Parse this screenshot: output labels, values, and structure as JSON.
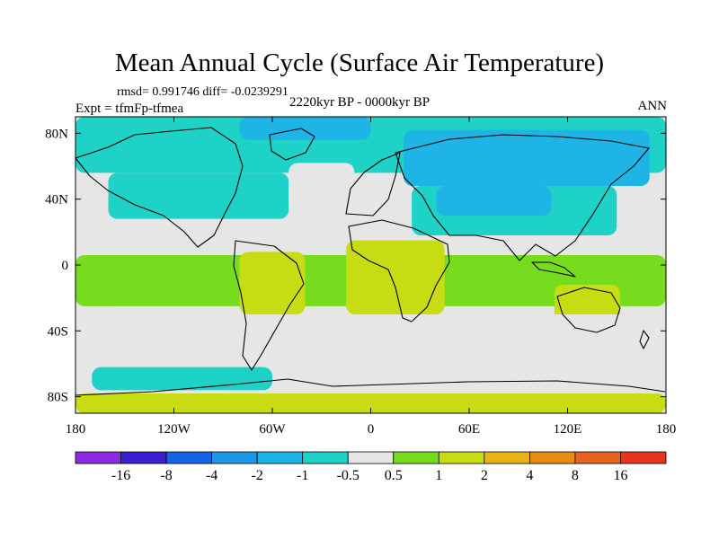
{
  "title": "Mean Annual Cycle (Surface Air Temperature)",
  "stats": "rmsd= 0.991746 diff= -0.0239291",
  "subtitle": "2220kyr BP - 0000kyr BP",
  "expt": "Expt = tfmFp-tfmea",
  "season": "ANN",
  "chart_data": {
    "type": "heatmap",
    "map_projection": "cylindrical-equidistant",
    "title": "Mean Annual Cycle (Surface Air Temperature)",
    "lon_range": [
      -180,
      180
    ],
    "lat_range": [
      -90,
      90
    ],
    "x_ticks": [
      {
        "value": -180,
        "label": "180"
      },
      {
        "value": -120,
        "label": "120W"
      },
      {
        "value": -60,
        "label": "60W"
      },
      {
        "value": 0,
        "label": "0"
      },
      {
        "value": 60,
        "label": "60E"
      },
      {
        "value": 120,
        "label": "120E"
      },
      {
        "value": 180,
        "label": "180"
      }
    ],
    "y_ticks": [
      {
        "value": 80,
        "label": "80N"
      },
      {
        "value": 40,
        "label": "40N"
      },
      {
        "value": 0,
        "label": "0"
      },
      {
        "value": -40,
        "label": "40S"
      },
      {
        "value": -80,
        "label": "80S"
      }
    ],
    "colorbar": {
      "colors": [
        "#8a2be2",
        "#3a1fd0",
        "#1464e6",
        "#1e96e6",
        "#1eb4e6",
        "#1ed2c8",
        "#e6e6e6",
        "#78dc1e",
        "#c8dc14",
        "#e6b414",
        "#e68c14",
        "#e6641e",
        "#e6321e"
      ],
      "labels": [
        "-16",
        "-8",
        "-4",
        "-2",
        "-1",
        "-0.5",
        "0.5",
        "1",
        "2",
        "4",
        "8",
        "16"
      ]
    },
    "regions": [
      {
        "name": "north-polar-cyan",
        "bin": "-1",
        "color": "#1ed2c8",
        "lon": [
          -180,
          180
        ],
        "lat": [
          56,
          90
        ]
      },
      {
        "name": "eurasia-blue",
        "bin": "-2",
        "color": "#1eb4e6",
        "lon": [
          20,
          170
        ],
        "lat": [
          48,
          82
        ]
      },
      {
        "name": "arctic-blue",
        "bin": "-2",
        "color": "#1eb4e6",
        "lon": [
          -80,
          0
        ],
        "lat": [
          76,
          90
        ]
      },
      {
        "name": "north-america-cyan",
        "bin": "-1",
        "color": "#1ed2c8",
        "lon": [
          -160,
          -50
        ],
        "lat": [
          28,
          56
        ]
      },
      {
        "name": "asia-cyan",
        "bin": "-1",
        "color": "#1ed2c8",
        "lon": [
          25,
          150
        ],
        "lat": [
          18,
          48
        ]
      },
      {
        "name": "central-asia-blue",
        "bin": "-2",
        "color": "#1eb4e6",
        "lon": [
          40,
          110
        ],
        "lat": [
          30,
          48
        ]
      },
      {
        "name": "north-atlantic-gray",
        "bin": "-0.5..0.5",
        "color": "#e6e6e6",
        "lon": [
          -50,
          -10
        ],
        "lat": [
          30,
          62
        ]
      },
      {
        "name": "tropics-green",
        "bin": "1",
        "color": "#78dc1e",
        "lon": [
          -180,
          180
        ],
        "lat": [
          -25,
          6
        ]
      },
      {
        "name": "south-america-yellow",
        "bin": "2",
        "color": "#c8dc14",
        "lon": [
          -80,
          -40
        ],
        "lat": [
          -30,
          8
        ]
      },
      {
        "name": "africa-yellow",
        "bin": "2",
        "color": "#c8dc14",
        "lon": [
          -15,
          45
        ],
        "lat": [
          -30,
          15
        ]
      },
      {
        "name": "australia-yellow",
        "bin": "2",
        "color": "#c8dc14",
        "lon": [
          112,
          152
        ],
        "lat": [
          -38,
          -12
        ]
      },
      {
        "name": "southern-ocean-gray",
        "bin": "-0.5..0.5",
        "color": "#e6e6e6",
        "lon": [
          -180,
          180
        ],
        "lat": [
          -60,
          -30
        ]
      },
      {
        "name": "southern-ocean-blue",
        "bin": "-1",
        "color": "#1ed2c8",
        "lon": [
          -170,
          -60
        ],
        "lat": [
          -76,
          -62
        ]
      },
      {
        "name": "antarctica-yellow",
        "bin": "2",
        "color": "#c8dc14",
        "lon": [
          -180,
          180
        ],
        "lat": [
          -90,
          -78
        ]
      }
    ]
  }
}
